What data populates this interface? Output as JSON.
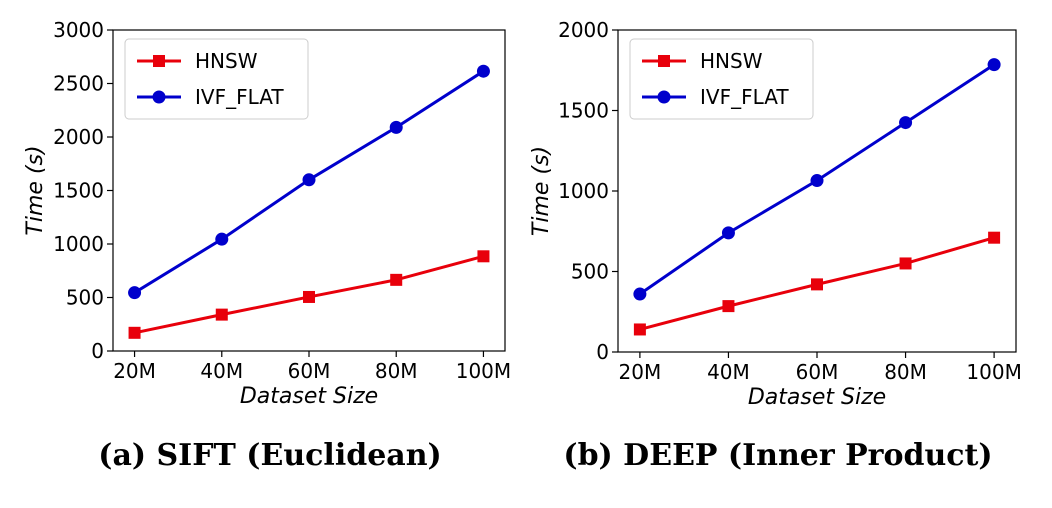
{
  "chart_data": [
    {
      "type": "line",
      "caption": "(a) SIFT (Euclidean)",
      "xlabel": "Dataset Size",
      "ylabel": "Time (s)",
      "categories": [
        "20M",
        "40M",
        "60M",
        "80M",
        "100M"
      ],
      "ylim": [
        0,
        3000
      ],
      "yticks": [
        0,
        500,
        1000,
        1500,
        2000,
        2500,
        3000
      ],
      "legend_position": "top-left",
      "grid": false,
      "series": [
        {
          "name": "HNSW",
          "color": "#e8000b",
          "marker": "square",
          "values": [
            170,
            340,
            505,
            665,
            885
          ]
        },
        {
          "name": "IVF_FLAT",
          "color": "#0000cc",
          "marker": "circle",
          "values": [
            545,
            1045,
            1600,
            2090,
            2615
          ]
        }
      ]
    },
    {
      "type": "line",
      "caption": "(b) DEEP (Inner Product)",
      "xlabel": "Dataset Size",
      "ylabel": "Time (s)",
      "categories": [
        "20M",
        "40M",
        "60M",
        "80M",
        "100M"
      ],
      "ylim": [
        0,
        2000
      ],
      "yticks": [
        0,
        500,
        1000,
        1500,
        2000
      ],
      "legend_position": "top-left",
      "grid": false,
      "series": [
        {
          "name": "HNSW",
          "color": "#e8000b",
          "marker": "square",
          "values": [
            140,
            285,
            420,
            550,
            710
          ]
        },
        {
          "name": "IVF_FLAT",
          "color": "#0000cc",
          "marker": "circle",
          "values": [
            360,
            740,
            1065,
            1425,
            1785
          ]
        }
      ]
    }
  ]
}
